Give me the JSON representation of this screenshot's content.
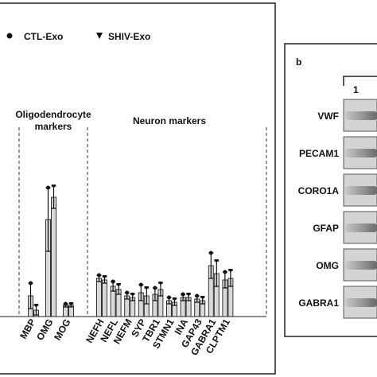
{
  "chart_data": {
    "type": "bar",
    "categories": [
      "MBP",
      "OMG",
      "MOG",
      "NEFH",
      "NEFL",
      "NEFM",
      "SYP",
      "TBR1",
      "STMN1",
      "INA",
      "GAP43",
      "GABRA1",
      "CLPTM1"
    ],
    "series": [
      {
        "name": "CTL-Exo",
        "color": "#d9d9d9",
        "values": [
          0.13,
          0.61,
          0.07,
          0.24,
          0.19,
          0.13,
          0.15,
          0.14,
          0.1,
          0.12,
          0.11,
          0.32,
          0.23
        ],
        "errors": [
          0.08,
          0.2,
          0.01,
          0.02,
          0.03,
          0.02,
          0.05,
          0.04,
          0.02,
          0.02,
          0.02,
          0.08,
          0.05
        ]
      },
      {
        "name": "SHIV-Exo",
        "color": "#d9d9d9",
        "values": [
          0.04,
          0.75,
          0.07,
          0.23,
          0.17,
          0.12,
          0.13,
          0.17,
          0.09,
          0.12,
          0.1,
          0.27,
          0.24
        ],
        "errors": [
          0.03,
          0.07,
          0.01,
          0.02,
          0.03,
          0.02,
          0.05,
          0.04,
          0.02,
          0.02,
          0.02,
          0.08,
          0.05
        ]
      }
    ],
    "ylim": [
      0,
      1
    ],
    "annotations": [
      "Oligodendrocyte markers",
      "Neuron markers"
    ],
    "panel_b": {
      "label": "b",
      "lane": "1",
      "rows": [
        "VWF",
        "PECAM1",
        "CORO1A",
        "GFAP",
        "OMG",
        "GABRA1"
      ]
    }
  }
}
